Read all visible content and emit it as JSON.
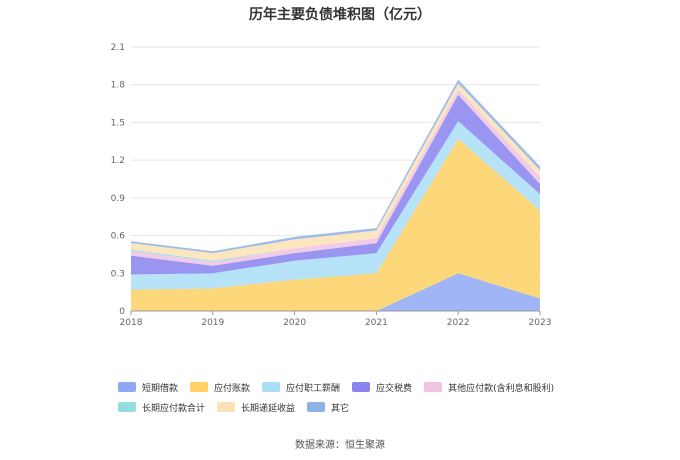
{
  "chart_data": {
    "type": "area",
    "title": "历年主要负债堆积图（亿元）",
    "source": "数据来源：恒生聚源",
    "x": [
      "2018",
      "2019",
      "2020",
      "2021",
      "2022",
      "2023"
    ],
    "yticks": [
      "0",
      "0.3",
      "0.6",
      "0.9",
      "1.2",
      "1.5",
      "1.8",
      "2.1"
    ],
    "ylim": [
      0,
      2.1
    ],
    "stacked": true,
    "grid": true,
    "legend_position": "bottom",
    "series": [
      {
        "name": "短期借款",
        "color": "#8fa8f5",
        "values": [
          0,
          0,
          0,
          0,
          0.3,
          0.1
        ]
      },
      {
        "name": "应付账款",
        "color": "#fdd163",
        "values": [
          0.17,
          0.18,
          0.25,
          0.3,
          1.07,
          0.7
        ]
      },
      {
        "name": "应付职工薪酬",
        "color": "#a9def7",
        "values": [
          0.12,
          0.12,
          0.15,
          0.16,
          0.14,
          0.13
        ]
      },
      {
        "name": "应交税费",
        "color": "#8883ee",
        "values": [
          0.15,
          0.06,
          0.06,
          0.08,
          0.21,
          0.08
        ]
      },
      {
        "name": "其他应付款(含利息和股利)",
        "color": "#f0c3e3",
        "values": [
          0.04,
          0.03,
          0.04,
          0.04,
          0.04,
          0.06
        ]
      },
      {
        "name": "长期应付款合计",
        "color": "#93dde0",
        "values": [
          0.01,
          0.01,
          0.0,
          0.0,
          0.0,
          0.0
        ]
      },
      {
        "name": "长期递延收益",
        "color": "#fce2b4",
        "values": [
          0.05,
          0.06,
          0.07,
          0.06,
          0.05,
          0.05
        ]
      },
      {
        "name": "其它",
        "color": "#8eb1e6",
        "values": [
          0.015,
          0.015,
          0.02,
          0.02,
          0.03,
          0.03
        ]
      }
    ]
  }
}
